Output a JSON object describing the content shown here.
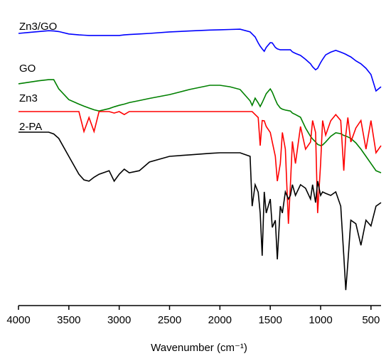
{
  "chart_data": {
    "type": "line",
    "x_label": "Wavenumber (cm⁻¹)",
    "x": [
      4000,
      3900,
      3800,
      3700,
      3650,
      3600,
      3500,
      3400,
      3350,
      3300,
      3250,
      3200,
      3100,
      3050,
      3000,
      2950,
      2900,
      2800,
      2700,
      2500,
      2300,
      2100,
      2000,
      1900,
      1800,
      1700,
      1680,
      1650,
      1620,
      1600,
      1580,
      1560,
      1540,
      1500,
      1480,
      1450,
      1430,
      1400,
      1380,
      1350,
      1320,
      1300,
      1280,
      1250,
      1200,
      1150,
      1100,
      1080,
      1050,
      1030,
      1000,
      980,
      950,
      900,
      850,
      800,
      770,
      750,
      730,
      700,
      650,
      600,
      550,
      500,
      450,
      400
    ],
    "xlim": [
      4000,
      400
    ],
    "xticks": [
      4000,
      3500,
      3000,
      2500,
      2000,
      1500,
      1000,
      500
    ],
    "ylim": [
      0,
      100
    ],
    "series": [
      {
        "name": "Zn3/GO",
        "color": "#0000ff",
        "values": [
          91.2,
          91.5,
          91.8,
          92.1,
          92,
          91.8,
          91,
          90.7,
          90.6,
          90.5,
          90.5,
          90.5,
          90.5,
          90.5,
          90.5,
          90.7,
          90.8,
          91,
          91.2,
          91.7,
          92,
          92.3,
          92.4,
          92.5,
          92.6,
          91.7,
          91,
          90,
          88,
          86.9,
          86,
          85.2,
          86.5,
          88.1,
          88,
          86.5,
          86,
          85.7,
          85.7,
          85.7,
          85.7,
          85.7,
          85,
          84.5,
          83.8,
          82.5,
          81,
          80,
          79,
          79.5,
          81.4,
          82.5,
          84,
          84.9,
          85.5,
          84.9,
          84.5,
          84.2,
          83.8,
          83.3,
          82,
          81,
          79.5,
          77.4,
          71.9,
          73.3
        ]
      },
      {
        "name": "GO",
        "color": "#008000",
        "values": [
          74.3,
          74.8,
          75.3,
          75.7,
          75.7,
          72.6,
          69,
          67.5,
          66.8,
          66.2,
          65.6,
          65.2,
          66,
          66.6,
          67.1,
          67.5,
          68,
          68.7,
          69.4,
          70.7,
          72.4,
          73.8,
          73.8,
          73.3,
          72.4,
          68.6,
          67.1,
          69.5,
          67.9,
          66.7,
          68,
          69.5,
          71,
          72.6,
          71.5,
          69,
          67.5,
          66.2,
          65.8,
          65.5,
          65.3,
          65.2,
          64.5,
          64,
          63.1,
          59.5,
          56.7,
          55.8,
          54.8,
          54,
          53.6,
          53.8,
          54.8,
          56.7,
          57.9,
          57.6,
          57,
          56.8,
          56.5,
          56,
          54.5,
          52.4,
          50,
          47.6,
          45.2,
          44.5
        ]
      },
      {
        "name": "Zn3",
        "color": "#ff0000",
        "values": [
          65,
          65,
          65,
          65,
          65,
          65,
          65,
          65,
          58.3,
          63,
          58.3,
          65,
          65,
          64.5,
          65,
          64,
          65,
          65,
          65,
          65,
          65,
          65,
          65,
          65,
          65,
          65,
          65,
          64,
          63,
          53.6,
          62,
          61.9,
          60,
          58,
          54.8,
          50,
          41.7,
          47.6,
          58,
          52.4,
          27.4,
          40.5,
          55,
          47.6,
          60,
          52.4,
          54.8,
          62,
          58,
          31,
          47.6,
          62,
          57.1,
          61.9,
          64,
          62,
          45.2,
          57.1,
          63,
          54.8,
          59.5,
          62,
          52.4,
          62,
          51.2,
          53.6
        ]
      },
      {
        "name": "2-PA",
        "color": "#000000",
        "values": [
          58.1,
          58.1,
          58.1,
          58.1,
          57.5,
          56,
          50,
          44,
          42.1,
          41.7,
          43,
          44,
          45.2,
          41.7,
          44,
          45.7,
          44.5,
          45.2,
          48.1,
          50,
          50.5,
          51,
          51.2,
          51.2,
          51.2,
          50,
          33.3,
          40.5,
          38,
          31,
          16.7,
          38.1,
          31,
          35.7,
          26.2,
          28.6,
          15.5,
          33.3,
          31,
          38.1,
          35.7,
          36.9,
          40.5,
          36.9,
          40.5,
          39.3,
          35.7,
          40.5,
          34.5,
          41.7,
          36.9,
          38.1,
          37.6,
          36.9,
          38.1,
          33.3,
          16.7,
          5.2,
          14.3,
          28.6,
          27.4,
          20.2,
          28.6,
          26.7,
          33.3,
          34.5
        ]
      }
    ]
  }
}
